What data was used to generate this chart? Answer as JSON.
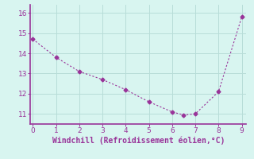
{
  "x": [
    0,
    1,
    2,
    3,
    4,
    5,
    6,
    6.5,
    7,
    8,
    9
  ],
  "y": [
    14.7,
    13.8,
    13.1,
    12.7,
    12.2,
    11.6,
    11.1,
    10.95,
    11.0,
    12.1,
    15.8
  ],
  "xlim": [
    -0.1,
    9.2
  ],
  "ylim": [
    10.5,
    16.4
  ],
  "yticks": [
    11,
    12,
    13,
    14,
    15,
    16
  ],
  "xticks": [
    0,
    1,
    2,
    3,
    4,
    5,
    6,
    7,
    8,
    9
  ],
  "xlabel": "Windchill (Refroidissement éolien,°C)",
  "line_color": "#993399",
  "marker": "D",
  "marker_size": 2.5,
  "background_color": "#d8f5f0",
  "grid_color": "#b8ddd8",
  "tick_fontsize": 6.5,
  "xlabel_fontsize": 7.0,
  "spine_color": "#993399",
  "spine_linewidth": 1.2
}
